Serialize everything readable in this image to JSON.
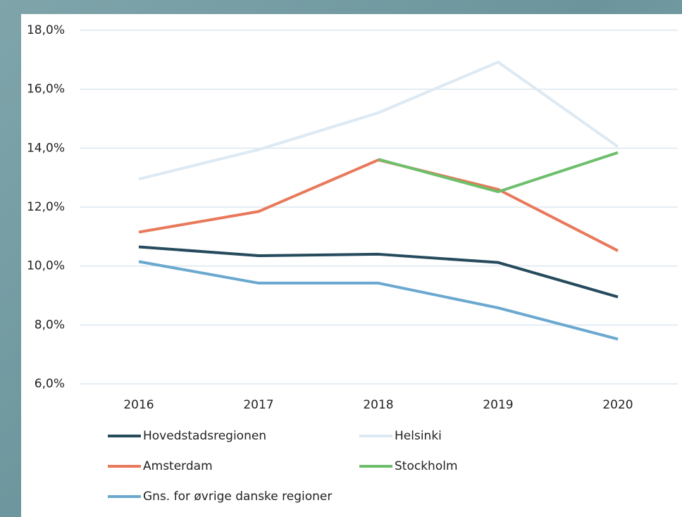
{
  "chart_data": {
    "type": "line",
    "categories": [
      "2016",
      "2017",
      "2018",
      "2019",
      "2020"
    ],
    "series": [
      {
        "name": "Hovedstadsregionen",
        "color": "#264b5d",
        "values": [
          10.65,
          10.35,
          10.4,
          10.12,
          8.95
        ]
      },
      {
        "name": "Helsinki",
        "color": "#dde9f3",
        "values": [
          12.95,
          13.95,
          15.2,
          16.92,
          14.05
        ]
      },
      {
        "name": "Amsterdam",
        "color": "#e8795a",
        "values": [
          11.15,
          11.85,
          13.6,
          12.6,
          10.52
        ]
      },
      {
        "name": "Stockholm",
        "color": "#6dbf6b",
        "values": [
          null,
          null,
          13.62,
          12.52,
          13.85
        ]
      },
      {
        "name": "Gns. for øvrige danske regioner",
        "color": "#6aa8cf",
        "values": [
          10.15,
          9.42,
          9.42,
          8.58,
          7.52
        ]
      }
    ],
    "ylim": [
      6,
      18
    ],
    "yticks": [
      {
        "value": 6,
        "label": "6,0%"
      },
      {
        "value": 8,
        "label": "8,0%"
      },
      {
        "value": 10,
        "label": "10,0%"
      },
      {
        "value": 12,
        "label": "12,0%"
      },
      {
        "value": 14,
        "label": "14,0%"
      },
      {
        "value": 16,
        "label": "16,0%"
      },
      {
        "value": 18,
        "label": "18,0%"
      }
    ],
    "grid": true
  }
}
